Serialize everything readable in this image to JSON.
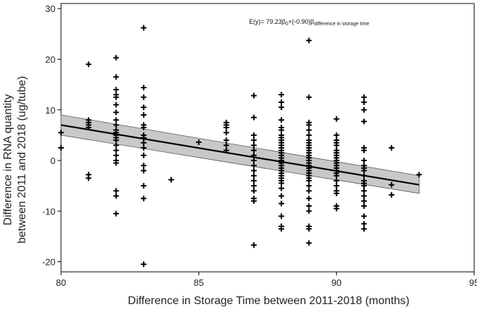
{
  "chart_data": {
    "type": "scatter",
    "title": "",
    "xlabel": "Difference in Storage Time between 2011-2018 (months)",
    "ylabel_line1": "Difference in RNA quantity",
    "ylabel_line2": "between 2011 and 2018 (ug/tube)",
    "xlim": [
      80,
      95
    ],
    "ylim": [
      -22,
      31
    ],
    "xticks": [
      80,
      85,
      90,
      95
    ],
    "yticks": [
      -20,
      -10,
      0,
      10,
      20,
      30
    ],
    "grid": false,
    "annotation": {
      "prefix": "E(y)= 79.23β",
      "sub0": "0",
      "middle": "+(-0.90)β",
      "sub1": "difference in storage time"
    },
    "regression": {
      "x": [
        80,
        93
      ],
      "y": [
        7.0,
        -4.8
      ],
      "ci_upper": [
        9.0,
        -3.0
      ],
      "ci_lower": [
        5.0,
        -6.5
      ]
    },
    "series": [
      {
        "name": "observations",
        "marker": "+",
        "points": [
          [
            80,
            5.5
          ],
          [
            80,
            2.5
          ],
          [
            81,
            19
          ],
          [
            81,
            8
          ],
          [
            81,
            7.5
          ],
          [
            81,
            7
          ],
          [
            81,
            6.5
          ],
          [
            81,
            -2.8
          ],
          [
            81,
            -3.5
          ],
          [
            82,
            20.3
          ],
          [
            82,
            16.5
          ],
          [
            82,
            14
          ],
          [
            82,
            13
          ],
          [
            82,
            12.5
          ],
          [
            82,
            11
          ],
          [
            82,
            9.5
          ],
          [
            82,
            8
          ],
          [
            82,
            7
          ],
          [
            82,
            6
          ],
          [
            82,
            5.5
          ],
          [
            82,
            5
          ],
          [
            82,
            4.5
          ],
          [
            82,
            4
          ],
          [
            82,
            3
          ],
          [
            82,
            2
          ],
          [
            82,
            1
          ],
          [
            82,
            0
          ],
          [
            82,
            -0.5
          ],
          [
            82,
            -6
          ],
          [
            82,
            -7
          ],
          [
            82,
            -10.5
          ],
          [
            83,
            26.2
          ],
          [
            83,
            14.4
          ],
          [
            83,
            12.5
          ],
          [
            83,
            10.5
          ],
          [
            83,
            9
          ],
          [
            83,
            7
          ],
          [
            83,
            6.5
          ],
          [
            83,
            5
          ],
          [
            83,
            4.5
          ],
          [
            83,
            3.5
          ],
          [
            83,
            2.5
          ],
          [
            83,
            1
          ],
          [
            83,
            -1
          ],
          [
            83,
            -2
          ],
          [
            83,
            -5
          ],
          [
            83,
            -7.5
          ],
          [
            83,
            -20.5
          ],
          [
            84,
            -3.8
          ],
          [
            85,
            3.6
          ],
          [
            86,
            7.5
          ],
          [
            86,
            7
          ],
          [
            86,
            6.5
          ],
          [
            86,
            5.5
          ],
          [
            86,
            4
          ],
          [
            86,
            3
          ],
          [
            86,
            2
          ],
          [
            87,
            12.8
          ],
          [
            87,
            8.5
          ],
          [
            87,
            5
          ],
          [
            87,
            4
          ],
          [
            87,
            3
          ],
          [
            87,
            2
          ],
          [
            87,
            1
          ],
          [
            87,
            0
          ],
          [
            87,
            -1
          ],
          [
            87,
            -2
          ],
          [
            87,
            -3
          ],
          [
            87,
            -4
          ],
          [
            87,
            -5
          ],
          [
            87,
            -6
          ],
          [
            87,
            -7.5
          ],
          [
            87,
            -8
          ],
          [
            87,
            -16.7
          ],
          [
            88,
            13
          ],
          [
            88,
            11.5
          ],
          [
            88,
            10.5
          ],
          [
            88,
            8
          ],
          [
            88,
            6.5
          ],
          [
            88,
            6
          ],
          [
            88,
            5
          ],
          [
            88,
            4.5
          ],
          [
            88,
            4
          ],
          [
            88,
            3.5
          ],
          [
            88,
            3
          ],
          [
            88,
            2.5
          ],
          [
            88,
            2
          ],
          [
            88,
            1.5
          ],
          [
            88,
            1
          ],
          [
            88,
            0.5
          ],
          [
            88,
            0
          ],
          [
            88,
            -0.5
          ],
          [
            88,
            -1
          ],
          [
            88,
            -1.5
          ],
          [
            88,
            -2
          ],
          [
            88,
            -2.5
          ],
          [
            88,
            -3
          ],
          [
            88,
            -3.5
          ],
          [
            88,
            -4
          ],
          [
            88,
            -4.5
          ],
          [
            88,
            -5.5
          ],
          [
            88,
            -7
          ],
          [
            88,
            -8.5
          ],
          [
            88,
            -11
          ],
          [
            88,
            -13
          ],
          [
            88,
            -13.5
          ],
          [
            89,
            23.7
          ],
          [
            89,
            12.5
          ],
          [
            89,
            7.5
          ],
          [
            89,
            7
          ],
          [
            89,
            6
          ],
          [
            89,
            5
          ],
          [
            89,
            4
          ],
          [
            89,
            3.5
          ],
          [
            89,
            3
          ],
          [
            89,
            2.5
          ],
          [
            89,
            2
          ],
          [
            89,
            1.5
          ],
          [
            89,
            1
          ],
          [
            89,
            0.5
          ],
          [
            89,
            0
          ],
          [
            89,
            -0.5
          ],
          [
            89,
            -1
          ],
          [
            89,
            -1.5
          ],
          [
            89,
            -2
          ],
          [
            89,
            -2.5
          ],
          [
            89,
            -3
          ],
          [
            89,
            -3.5
          ],
          [
            89,
            -4
          ],
          [
            89,
            -5
          ],
          [
            89,
            -6
          ],
          [
            89,
            -7.5
          ],
          [
            89,
            -9
          ],
          [
            89,
            -10
          ],
          [
            89,
            -13
          ],
          [
            89,
            -13.5
          ],
          [
            89,
            -16.3
          ],
          [
            90,
            8.2
          ],
          [
            90,
            5
          ],
          [
            90,
            4
          ],
          [
            90,
            3.5
          ],
          [
            90,
            3
          ],
          [
            90,
            2
          ],
          [
            90,
            1.5
          ],
          [
            90,
            1
          ],
          [
            90,
            0.5
          ],
          [
            90,
            0
          ],
          [
            90,
            -0.5
          ],
          [
            90,
            -1
          ],
          [
            90,
            -1.5
          ],
          [
            90,
            -2
          ],
          [
            90,
            -2.5
          ],
          [
            90,
            -3
          ],
          [
            90,
            -4
          ],
          [
            90,
            -5
          ],
          [
            90,
            -6
          ],
          [
            90,
            -6.5
          ],
          [
            90,
            -9
          ],
          [
            90,
            -9.5
          ],
          [
            91,
            12.5
          ],
          [
            91,
            11.5
          ],
          [
            91,
            10
          ],
          [
            91,
            7.7
          ],
          [
            91,
            2.5
          ],
          [
            91,
            2
          ],
          [
            91,
            0
          ],
          [
            91,
            -1
          ],
          [
            91,
            -1.5
          ],
          [
            91,
            -2
          ],
          [
            91,
            -3
          ],
          [
            91,
            -4
          ],
          [
            91,
            -4.5
          ],
          [
            91,
            -5
          ],
          [
            91,
            -6
          ],
          [
            91,
            -7
          ],
          [
            91,
            -8
          ],
          [
            91,
            -9
          ],
          [
            91,
            -11
          ],
          [
            91,
            -12.5
          ],
          [
            91,
            -13.5
          ],
          [
            92,
            2.5
          ],
          [
            92,
            -4.8
          ],
          [
            92,
            -6.8
          ],
          [
            93,
            -2.8
          ]
        ]
      }
    ]
  }
}
